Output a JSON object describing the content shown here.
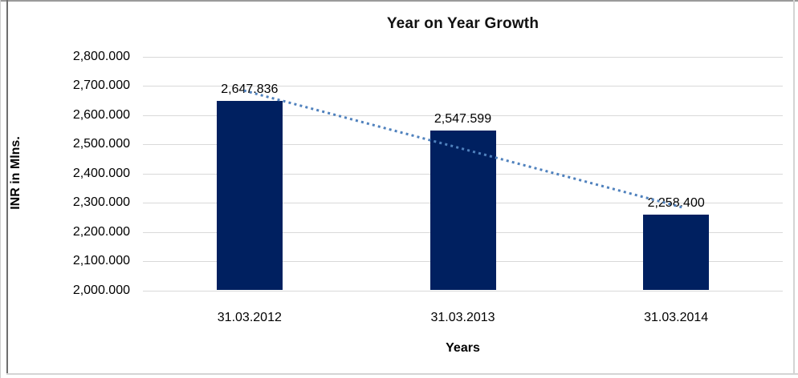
{
  "chart_data": {
    "type": "bar",
    "title": "Year on Year Growth",
    "xlabel": "Years",
    "ylabel": "INR in Mlns.",
    "categories": [
      "31.03.2012",
      "31.03.2013",
      "31.03.2014"
    ],
    "values": [
      2647.836,
      2547.599,
      2258.4
    ],
    "value_labels": [
      "2,647.836",
      "2,547.599",
      "2,258.400"
    ],
    "ylim": [
      2000,
      2800
    ],
    "ytick_step": 100,
    "ytick_labels": [
      "2,000.000",
      "2,100.000",
      "2,200.000",
      "2,300.000",
      "2,400.000",
      "2,500.000",
      "2,600.000",
      "2,700.000",
      "2,800.000"
    ],
    "grid": "horizontal",
    "legend": "none",
    "bar_color": "#002060",
    "gridline_color": "#D9D9D9",
    "trendline": {
      "type": "linear",
      "style": "dotted",
      "color": "#4F81BD"
    }
  }
}
